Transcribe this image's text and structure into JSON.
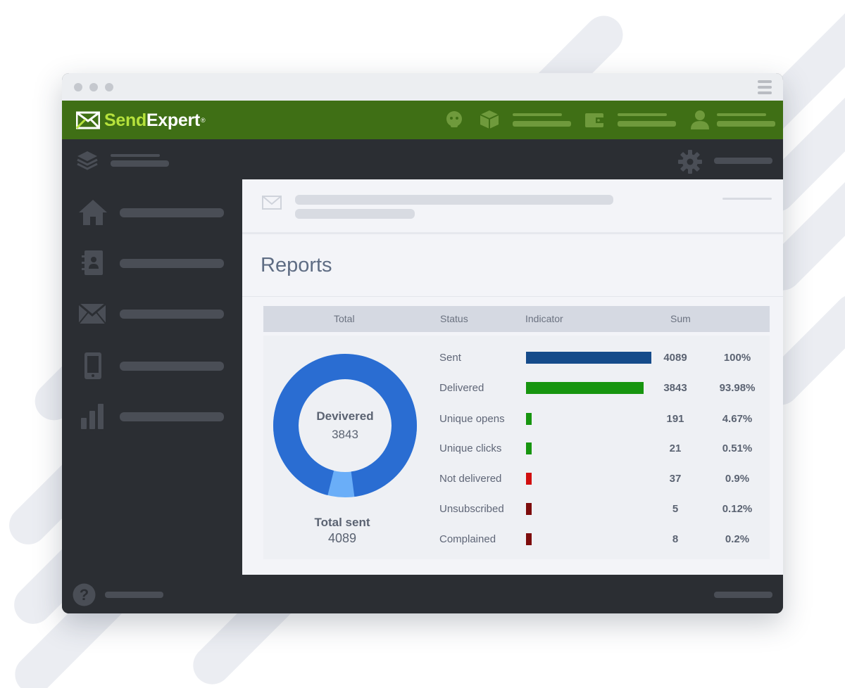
{
  "app": {
    "logo_prefix": "Send",
    "logo_suffix": "Expert",
    "logo_reg": "®"
  },
  "main": {
    "title": "Reports"
  },
  "table": {
    "headers": [
      "Total",
      "Status",
      "Indicator",
      "Sum"
    ]
  },
  "donut": {
    "center_label": "Devivered",
    "center_value": "3843",
    "total_label": "Total sent",
    "total_value": "4089",
    "delivered": 3843,
    "total": 4089,
    "colors": {
      "main": "#2a6dd2",
      "rest": "#6aaef8"
    }
  },
  "rows": [
    {
      "status": "Sent",
      "sum": "4089",
      "pct": "100%",
      "fraction": 1.0,
      "color": "#154b8a"
    },
    {
      "status": "Delivered",
      "sum": "3843",
      "pct": "93.98%",
      "fraction": 0.9398,
      "color": "#17950f"
    },
    {
      "status": "Unique opens",
      "sum": "191",
      "pct": "4.67%",
      "fraction": 0.0467,
      "color": "#17950f"
    },
    {
      "status": "Unique clicks",
      "sum": "21",
      "pct": "0.51%",
      "fraction": 0.0051,
      "color": "#17950f"
    },
    {
      "status": "Not delivered",
      "sum": "37",
      "pct": "0.9%",
      "fraction": 0.009,
      "color": "#d10f0f"
    },
    {
      "status": "Unsubscribed",
      "sum": "5",
      "pct": "0.12%",
      "fraction": 0.0012,
      "color": "#7d0c0c"
    },
    {
      "status": "Complained",
      "sum": "8",
      "pct": "0.2%",
      "fraction": 0.002,
      "color": "#7d0c0c"
    }
  ],
  "icons": {
    "topbar": [
      "support-icon",
      "box-icon",
      "wallet-icon",
      "user-icon"
    ],
    "subbar": [
      "layers-icon",
      "gear-icon"
    ],
    "sidebar": [
      "home-icon",
      "contacts-icon",
      "mail-icon",
      "mobile-icon",
      "stats-icon"
    ],
    "bottom": [
      "help-icon"
    ]
  }
}
